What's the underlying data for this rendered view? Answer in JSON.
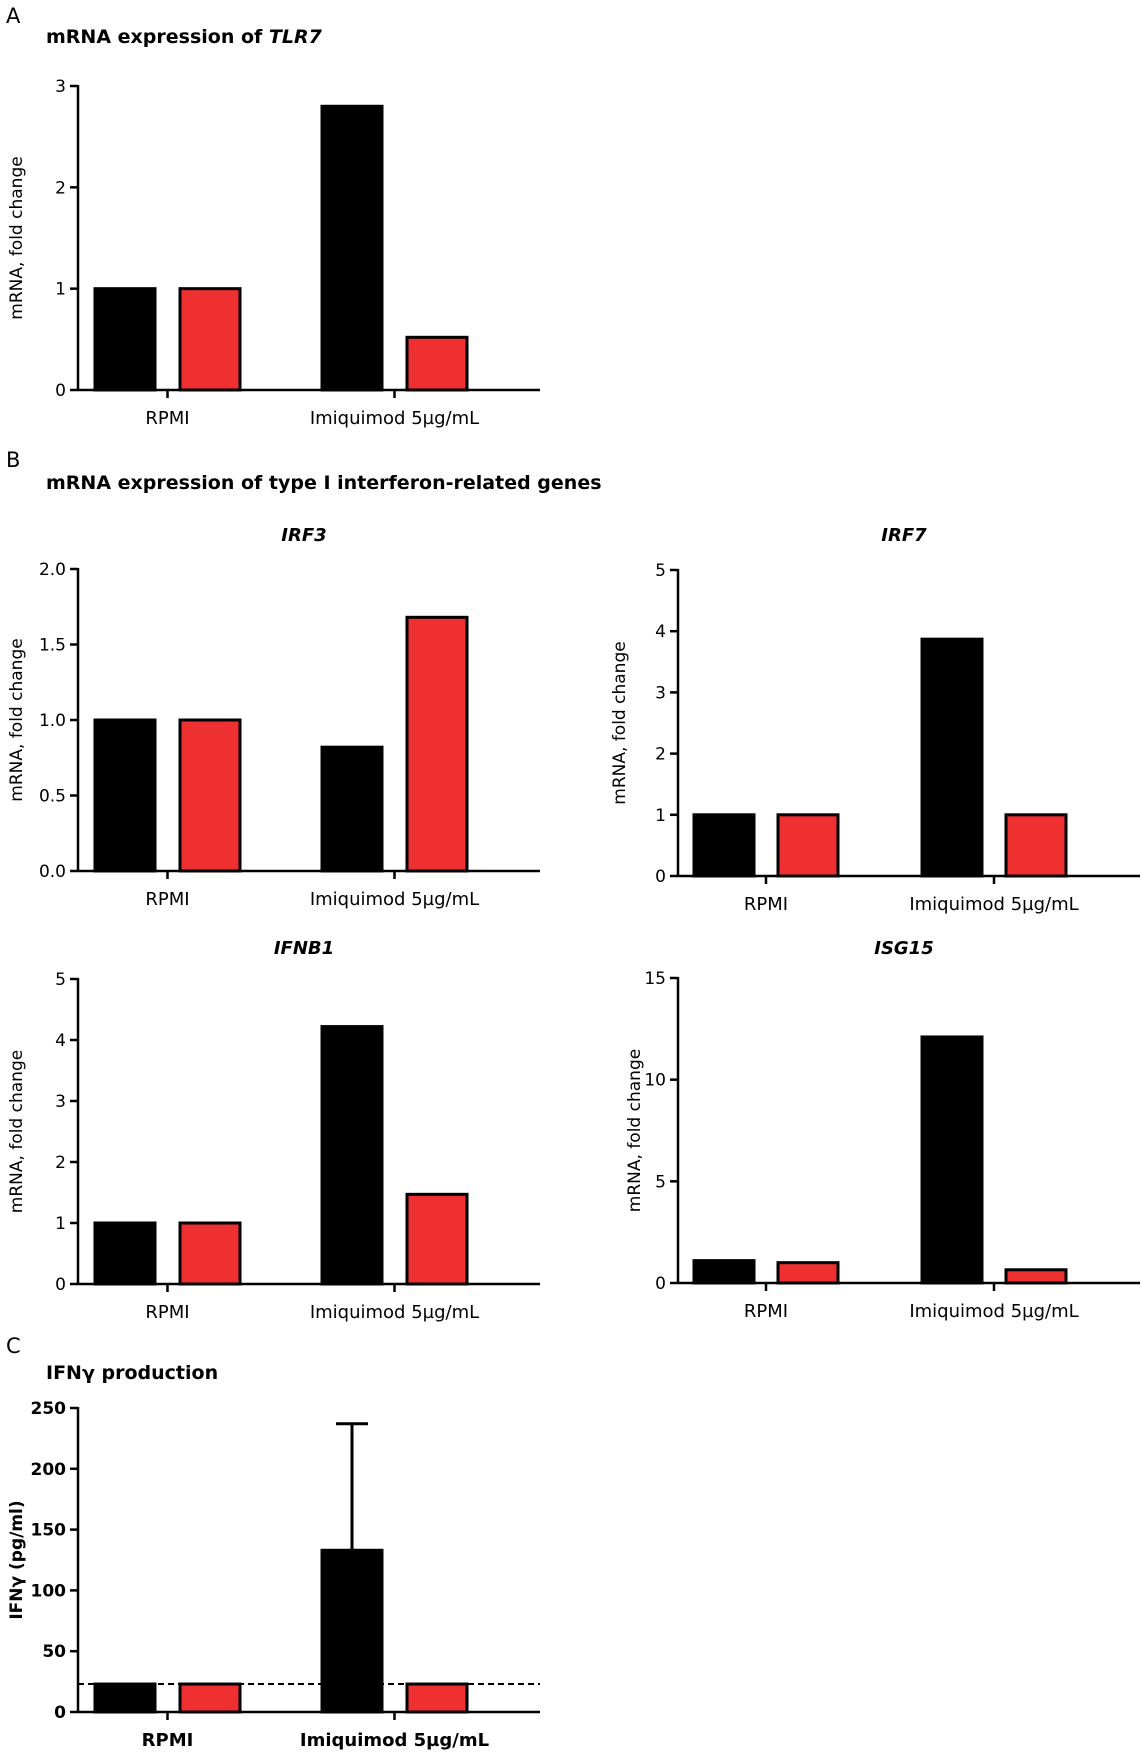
{
  "figure": {
    "panel_a": {
      "letter": "A",
      "title_prefix": "mRNA expression of ",
      "title_gene": "TLR7"
    },
    "panel_b": {
      "letter": "B",
      "title": "mRNA expression of type I interferon-related genes"
    },
    "panel_c": {
      "letter": "C",
      "title": "IFNγ production"
    }
  },
  "colors": {
    "series1": "#000000",
    "series2": "#ee3130",
    "axis": "#000000"
  },
  "chart_data": [
    {
      "id": "tlr7",
      "type": "bar",
      "title": "mRNA expression of TLR7",
      "categories": [
        "RPMI",
        "Imiquimod 5µg/mL"
      ],
      "series": [
        {
          "name": "series-black",
          "values": [
            1.0,
            2.8
          ]
        },
        {
          "name": "series-red",
          "values": [
            1.0,
            0.52
          ]
        }
      ],
      "ylabel": "mRNA, fold change",
      "ylim": [
        0,
        3
      ],
      "yticks": [
        "0",
        "1",
        "2",
        "3"
      ]
    },
    {
      "id": "irf3",
      "type": "bar",
      "title": "IRF3",
      "categories": [
        "RPMI",
        "Imiquimod 5µg/mL"
      ],
      "series": [
        {
          "name": "series-black",
          "values": [
            1.0,
            0.82
          ]
        },
        {
          "name": "series-red",
          "values": [
            1.0,
            1.68
          ]
        }
      ],
      "ylabel": "mRNA, fold change",
      "ylim": [
        0,
        2
      ],
      "yticks": [
        "0.0",
        "0.5",
        "1.0",
        "1.5",
        "2.0"
      ]
    },
    {
      "id": "irf7",
      "type": "bar",
      "title": "IRF7",
      "categories": [
        "RPMI",
        "Imiquimod 5µg/mL"
      ],
      "series": [
        {
          "name": "series-black",
          "values": [
            1.0,
            3.87
          ]
        },
        {
          "name": "series-red",
          "values": [
            1.0,
            1.0
          ]
        }
      ],
      "ylabel": "mRNA, fold change",
      "ylim": [
        0,
        5
      ],
      "yticks": [
        "0",
        "1",
        "2",
        "3",
        "4",
        "5"
      ]
    },
    {
      "id": "ifnb1",
      "type": "bar",
      "title": "IFNB1",
      "categories": [
        "RPMI",
        "Imiquimod 5µg/mL"
      ],
      "series": [
        {
          "name": "series-black",
          "values": [
            1.0,
            4.22
          ]
        },
        {
          "name": "series-red",
          "values": [
            1.0,
            1.47
          ]
        }
      ],
      "ylabel": "mRNA, fold change",
      "ylim": [
        0,
        5
      ],
      "yticks": [
        "0",
        "1",
        "2",
        "3",
        "4",
        "5"
      ]
    },
    {
      "id": "isg15",
      "type": "bar",
      "title": "ISG15",
      "categories": [
        "RPMI",
        "Imiquimod 5µg/mL"
      ],
      "series": [
        {
          "name": "series-black",
          "values": [
            1.1,
            12.1
          ]
        },
        {
          "name": "series-red",
          "values": [
            1.0,
            0.65
          ]
        }
      ],
      "ylabel": "mRNA, fold change",
      "ylim": [
        0,
        15
      ],
      "yticks": [
        "0",
        "5",
        "10",
        "15"
      ]
    },
    {
      "id": "ifng",
      "type": "bar",
      "title": "IFNγ production",
      "categories": [
        "RPMI",
        "Imiquimod 5µg/mL"
      ],
      "series": [
        {
          "name": "series-black",
          "values": [
            23,
            133
          ],
          "error": [
            0,
            104
          ]
        },
        {
          "name": "series-red",
          "values": [
            23,
            23
          ]
        }
      ],
      "ylabel": "IFNγ (pg/ml)",
      "ylim": [
        0,
        250
      ],
      "yticks": [
        "0",
        "50",
        "100",
        "150",
        "200",
        "250"
      ],
      "reference_line": 23
    }
  ]
}
